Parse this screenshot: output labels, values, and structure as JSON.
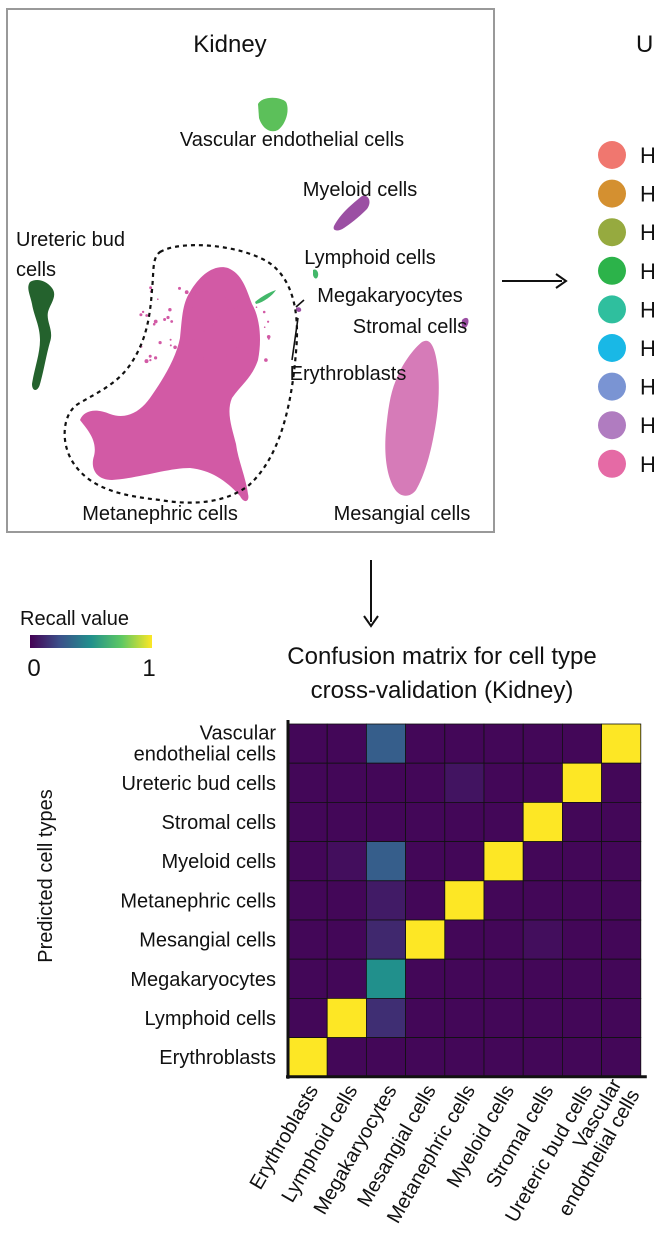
{
  "umap": {
    "title": "Kidney",
    "labels": {
      "vascular": "Vascular endothelial cells",
      "myeloid": "Myeloid cells",
      "ureteric_1": "Ureteric bud",
      "ureteric_2": "cells",
      "lymphoid": "Lymphoid cells",
      "megakaryocytes": "Megakaryocytes",
      "stromal": "Stromal cells",
      "erythroblasts": "Erythroblasts",
      "metanephric": "Metanephric cells",
      "mesangial": "Mesangial cells"
    },
    "colors": {
      "vascular": "#5cc05a",
      "myeloid": "#9b4fa3",
      "ureteric": "#24622d",
      "lymphoid": "#43b86a",
      "metanephric": "#d25aa5",
      "mesangial": "#d67bb8"
    }
  },
  "side_panel": {
    "title_fragment": "U",
    "legend_fragment": "H",
    "dot_colors": [
      "#f0776f",
      "#d49030",
      "#96aa3f",
      "#2cb34a",
      "#2fbf9e",
      "#19b8e6",
      "#7a94d3",
      "#b07cc0",
      "#e56aa5"
    ]
  },
  "colorbar": {
    "title": "Recall value",
    "min_label": "0",
    "max_label": "1",
    "stops": [
      "#440154",
      "#3b528b",
      "#21908c",
      "#5dc863",
      "#fde725"
    ]
  },
  "chart_data": {
    "type": "heatmap",
    "title": "Confusion matrix for cell type",
    "title_line2": "cross-validation (Kidney)",
    "ylabel": "Predicted cell types",
    "xlabel": "",
    "value_range": [
      0,
      1
    ],
    "x_categories": [
      "Erythroblasts",
      "Lymphoid cells",
      "Megakaryocytes",
      "Mesangial cells",
      "Metanephric cells",
      "Myeloid cells",
      "Stromal cells",
      "Ureteric bud cells",
      "Vascular endothelial cells"
    ],
    "x_tick_labels": [
      [
        "Erythroblasts"
      ],
      [
        "Lymphoid cells"
      ],
      [
        "Megakaryocytes"
      ],
      [
        "Mesangial cells"
      ],
      [
        "Metanephric cells"
      ],
      [
        "Myeloid cells"
      ],
      [
        "Stromal cells"
      ],
      [
        "Ureteric bud cells"
      ],
      [
        "Vascular",
        "endothelial cells"
      ]
    ],
    "y_categories": [
      "Vascular endothelial cells",
      "Ureteric bud cells",
      "Stromal cells",
      "Myeloid cells",
      "Metanephric cells",
      "Mesangial cells",
      "Megakaryocytes",
      "Lymphoid cells",
      "Erythroblasts"
    ],
    "y_tick_labels": [
      [
        "Vascular",
        "endothelial cells"
      ],
      [
        "Ureteric bud cells"
      ],
      [
        "Stromal cells"
      ],
      [
        "Myeloid cells"
      ],
      [
        "Metanephric cells"
      ],
      [
        "Mesangial cells"
      ],
      [
        "Megakaryocytes"
      ],
      [
        "Lymphoid cells"
      ],
      [
        "Erythroblasts"
      ]
    ],
    "values": [
      [
        0.02,
        0.02,
        0.3,
        0.02,
        0.02,
        0.02,
        0.02,
        0.02,
        1.0
      ],
      [
        0.02,
        0.02,
        0.02,
        0.02,
        0.06,
        0.02,
        0.02,
        1.0,
        0.02
      ],
      [
        0.02,
        0.02,
        0.02,
        0.02,
        0.02,
        0.02,
        1.0,
        0.02,
        0.02
      ],
      [
        0.02,
        0.04,
        0.3,
        0.02,
        0.02,
        1.0,
        0.02,
        0.02,
        0.02
      ],
      [
        0.02,
        0.02,
        0.08,
        0.02,
        1.0,
        0.02,
        0.02,
        0.02,
        0.02
      ],
      [
        0.02,
        0.02,
        0.12,
        1.0,
        0.02,
        0.02,
        0.04,
        0.02,
        0.02
      ],
      [
        0.02,
        0.02,
        0.5,
        0.02,
        0.02,
        0.02,
        0.02,
        0.02,
        0.02
      ],
      [
        0.02,
        1.0,
        0.14,
        0.02,
        0.02,
        0.02,
        0.02,
        0.02,
        0.02
      ],
      [
        1.0,
        0.02,
        0.02,
        0.02,
        0.02,
        0.02,
        0.02,
        0.02,
        0.02
      ]
    ]
  }
}
